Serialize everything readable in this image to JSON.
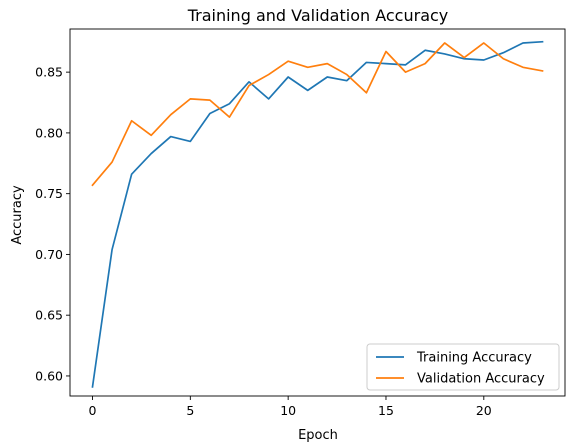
{
  "chart_data": {
    "type": "line",
    "title": "Training and Validation Accuracy",
    "xlabel": "Epoch",
    "ylabel": "Accuracy",
    "x": [
      0,
      1,
      2,
      3,
      4,
      5,
      6,
      7,
      8,
      9,
      10,
      11,
      12,
      13,
      14,
      15,
      16,
      17,
      18,
      19,
      20,
      21,
      22,
      23
    ],
    "xlim": [
      -1.15,
      24.15
    ],
    "ylim": [
      0.5835,
      0.8855
    ],
    "xticks": [
      0,
      5,
      10,
      15,
      20
    ],
    "yticks": [
      0.6,
      0.65,
      0.7,
      0.75,
      0.8,
      0.85
    ],
    "xtick_labels": [
      "0",
      "5",
      "10",
      "15",
      "20"
    ],
    "ytick_labels": [
      "0.60",
      "0.65",
      "0.70",
      "0.75",
      "0.80",
      "0.85"
    ],
    "grid": false,
    "legend_position": "lower-right",
    "series": [
      {
        "name": "Training Accuracy",
        "color": "#1f77b4",
        "values": [
          0.591,
          0.704,
          0.766,
          0.783,
          0.797,
          0.793,
          0.816,
          0.824,
          0.842,
          0.828,
          0.846,
          0.835,
          0.846,
          0.843,
          0.858,
          0.857,
          0.856,
          0.868,
          0.865,
          0.861,
          0.86,
          0.866,
          0.874,
          0.875
        ]
      },
      {
        "name": "Validation Accuracy",
        "color": "#ff7f0e",
        "values": [
          0.757,
          0.776,
          0.81,
          0.798,
          0.815,
          0.828,
          0.827,
          0.813,
          0.839,
          0.848,
          0.859,
          0.854,
          0.857,
          0.848,
          0.833,
          0.867,
          0.85,
          0.857,
          0.874,
          0.862,
          0.874,
          0.861,
          0.854,
          0.851
        ]
      }
    ]
  }
}
